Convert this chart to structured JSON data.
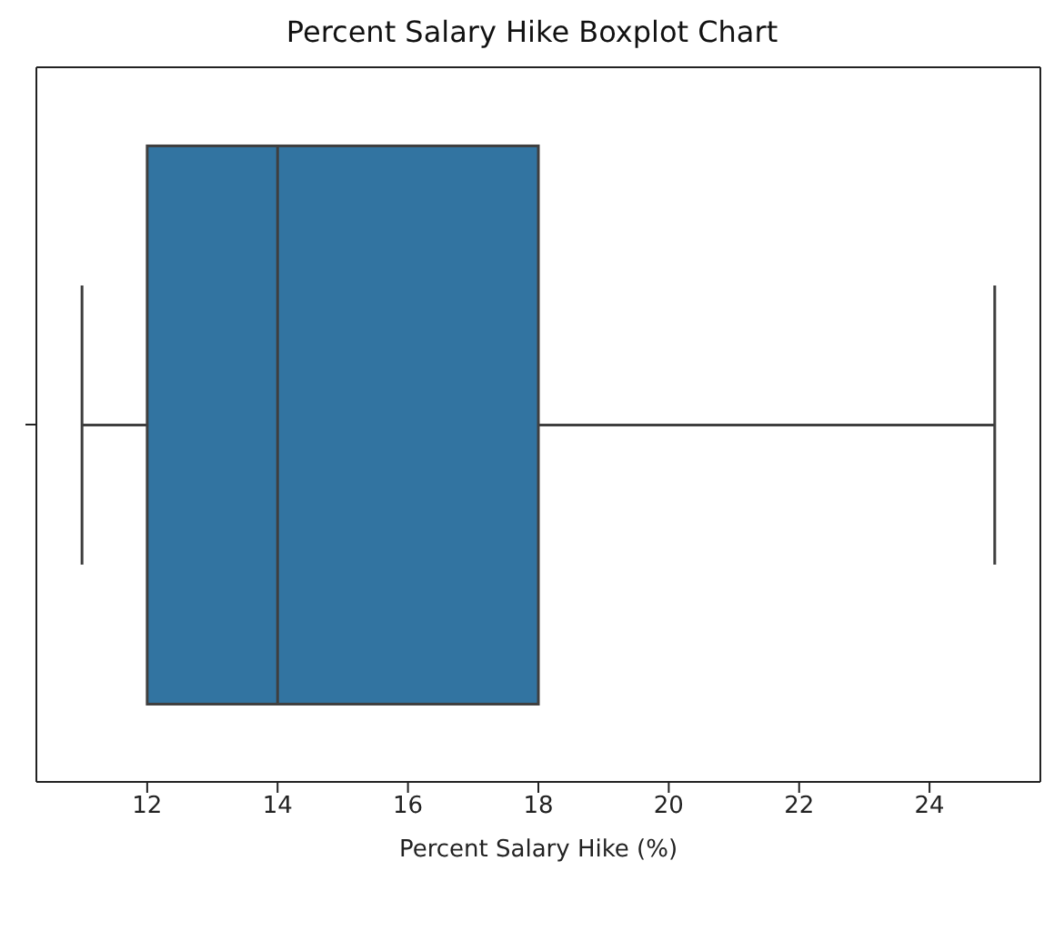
{
  "chart_data": {
    "type": "box",
    "title": "Percent Salary Hike Boxplot Chart",
    "xlabel": "Percent Salary Hike (%)",
    "orientation": "horizontal",
    "categories": [
      null
    ],
    "color": "#3274a1",
    "boxes": [
      {
        "low": 11,
        "q1": 12,
        "median": 14,
        "q3": 18,
        "high": 25
      }
    ],
    "xlim": [
      10.3,
      25.7
    ],
    "xticks": [
      12,
      14,
      16,
      18,
      20,
      22,
      24
    ],
    "grid": false
  }
}
